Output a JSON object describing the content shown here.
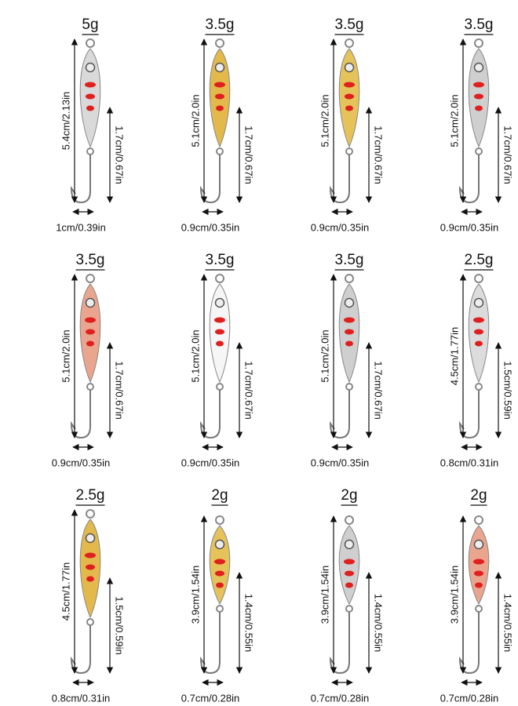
{
  "items": [
    {
      "weight": "5g",
      "length": "5.4cm/2.13in",
      "hook": "1.7cm/0.67in",
      "width": "1cm/0.39in"
    },
    {
      "weight": "3.5g",
      "length": "5.1cm/2.0in",
      "hook": "1.7cm/0.67in",
      "width": "0.9cm/0.35in"
    },
    {
      "weight": "3.5g",
      "length": "5.1cm/2.0in",
      "hook": "1.7cm/0.67in",
      "width": "0.9cm/0.35in"
    },
    {
      "weight": "3.5g",
      "length": "5.1cm/2.0in",
      "hook": "1.7cm/0.67in",
      "width": "0.9cm/0.35in"
    },
    {
      "weight": "3.5g",
      "length": "5.1cm/2.0in",
      "hook": "1.7cm/0.67in",
      "width": "0.9cm/0.35in"
    },
    {
      "weight": "3.5g",
      "length": "5.1cm/2.0in",
      "hook": "1.7cm/0.67in",
      "width": "0.9cm/0.35in"
    },
    {
      "weight": "3.5g",
      "length": "5.1cm/2.0in",
      "hook": "1.7cm/0.67in",
      "width": "0.9cm/0.35in"
    },
    {
      "weight": "2.5g",
      "length": "4.5cm/1.77in",
      "hook": "1.5cm/0.59in",
      "width": "0.8cm/0.31in"
    },
    {
      "weight": "2.5g",
      "length": "4.5cm/1.77in",
      "hook": "1.5cm/0.59in",
      "width": "0.8cm/0.31in"
    },
    {
      "weight": "2g",
      "length": "3.9cm/1.54in",
      "hook": "1.4cm/0.55in",
      "width": "0.7cm/0.28in"
    },
    {
      "weight": "2g",
      "length": "3.9cm/1.54in",
      "hook": "1.4cm/0.55in",
      "width": "0.7cm/0.28in"
    },
    {
      "weight": "2g",
      "length": "3.9cm/1.54in",
      "hook": "1.4cm/0.55in",
      "width": "0.7cm/0.28in"
    }
  ]
}
